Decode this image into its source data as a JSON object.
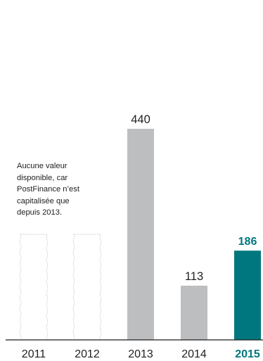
{
  "chart_data": {
    "type": "bar",
    "categories": [
      "2011",
      "2012",
      "2013",
      "2014",
      "2015"
    ],
    "values": [
      null,
      null,
      440,
      113,
      186
    ],
    "highlight_category": "2015",
    "ylim": [
      0,
      500
    ],
    "grid": false,
    "annotation": "Aucune valeur\ndisponible, car\nPostFinance n’est\ncapitalisée que\ndepuis 2013.",
    "colors": {
      "bar": "#bdbec0",
      "highlight": "#00777e",
      "placeholder": "#c8c8c8",
      "axis": "#1e1e1e",
      "label": "#1f1f1f"
    }
  }
}
